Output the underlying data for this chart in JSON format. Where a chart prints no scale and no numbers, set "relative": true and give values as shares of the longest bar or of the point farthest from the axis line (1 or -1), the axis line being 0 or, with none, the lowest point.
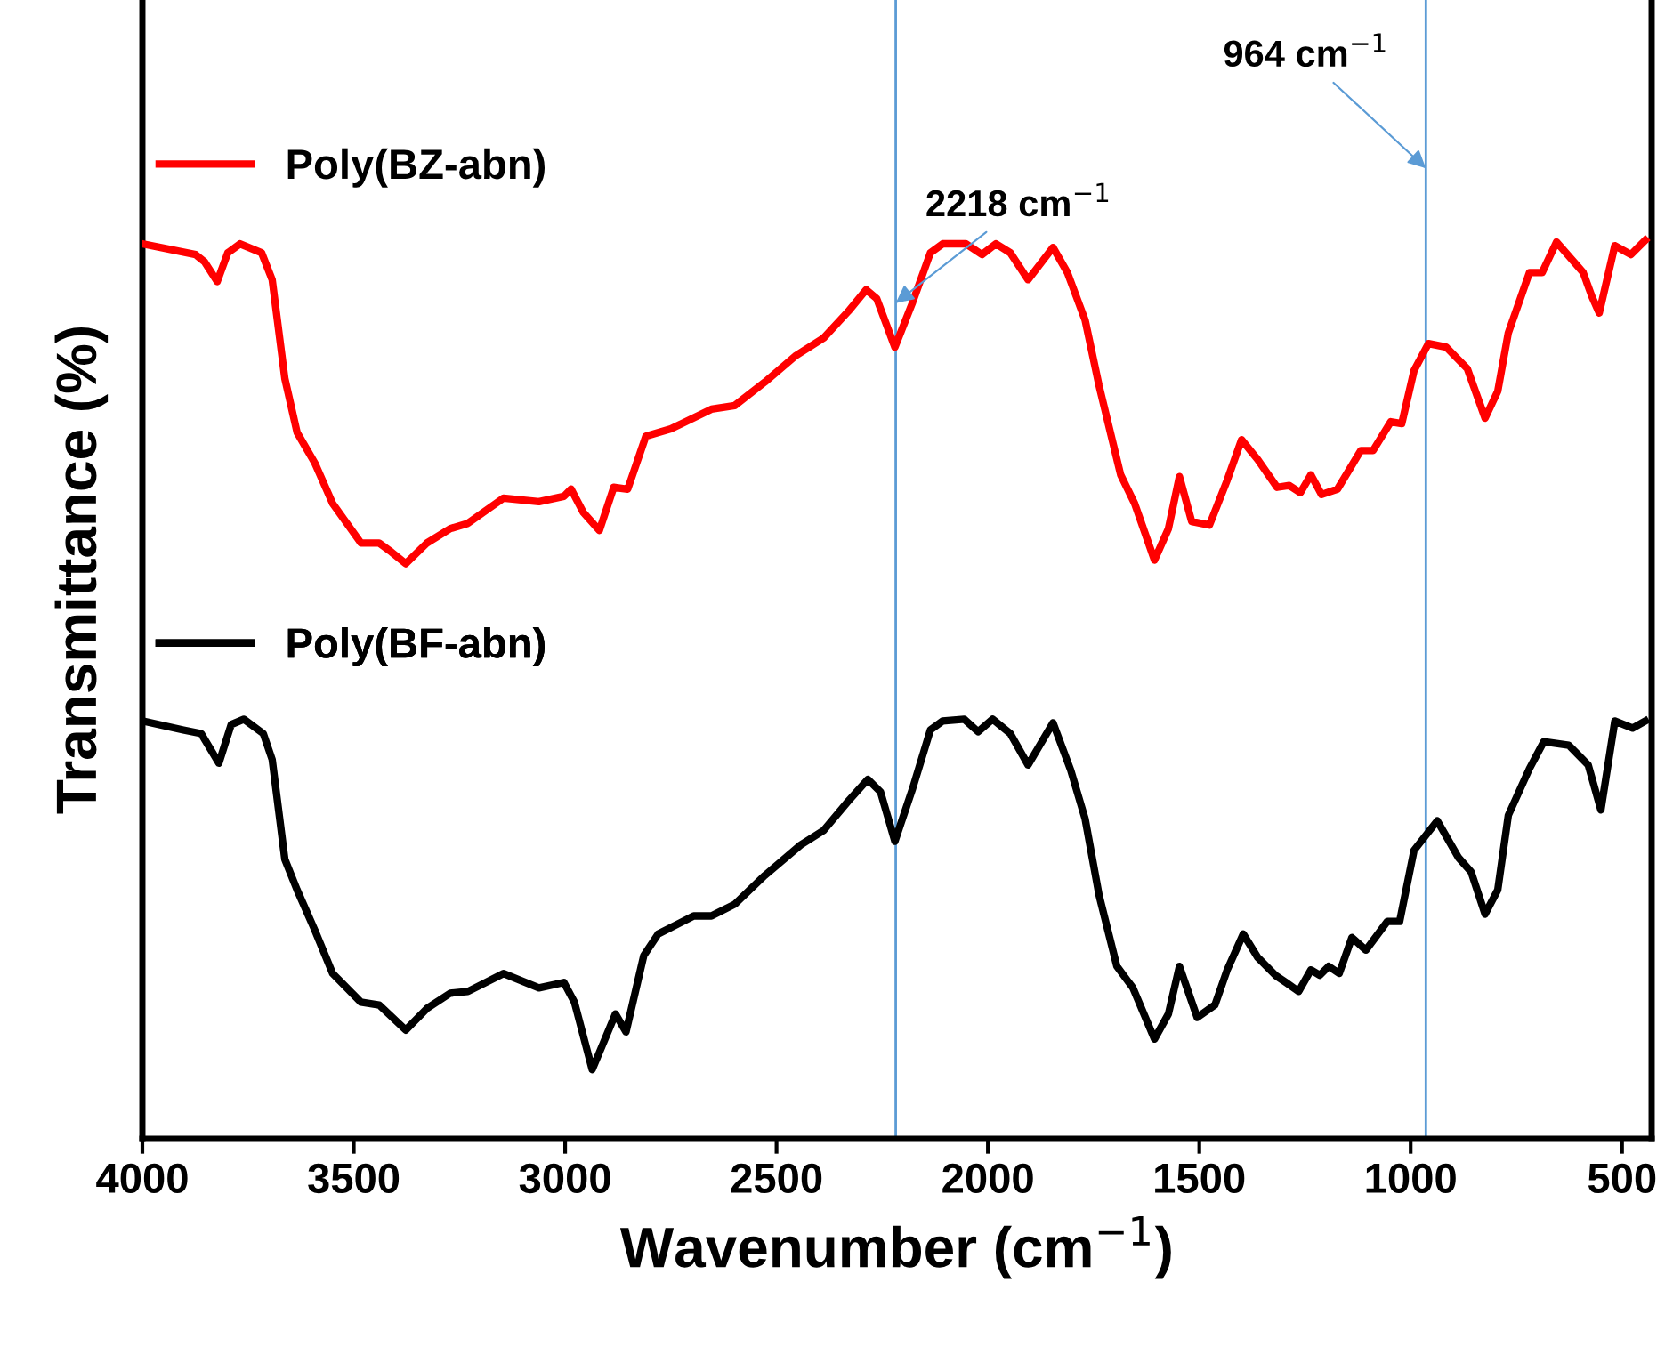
{
  "chart_data": {
    "type": "line",
    "relative": true,
    "xlabel": "Wavenumber (cm$^{−1}$)",
    "ylabel": "Transmittance (%)",
    "xlim": [
      4000,
      430
    ],
    "xticks": [
      4000,
      3500,
      3000,
      2500,
      2000,
      1500,
      1000,
      500
    ],
    "tick_labels": "x",
    "grid": false,
    "legend": "top left",
    "marker": "none",
    "line_style": "solid",
    "ref_lines": [
      {
        "axis": "x",
        "value": 2218,
        "label": "2218 cm$^{−1}$",
        "color": "#5b9bd5"
      },
      {
        "axis": "x",
        "value": 964,
        "label": "964 cm$^{−1}$",
        "color": "#5b9bd5"
      }
    ],
    "series": [
      {
        "name": "Poly(BZ-abn)",
        "color": "#ff0000",
        "x": [
          4000,
          3874,
          3853,
          3823,
          3798,
          3769,
          3718,
          3693,
          3663,
          3634,
          3592,
          3550,
          3483,
          3440,
          3411,
          3377,
          3327,
          3272,
          3230,
          3146,
          3062,
          3003,
          2986,
          2957,
          2919,
          2885,
          2852,
          2809,
          2750,
          2654,
          2599,
          2528,
          2456,
          2389,
          2330,
          2288,
          2263,
          2220,
          2178,
          2136,
          2107,
          2052,
          2014,
          1981,
          1947,
          1905,
          1846,
          1812,
          1770,
          1737,
          1686,
          1653,
          1606,
          1573,
          1547,
          1518,
          1476,
          1434,
          1400,
          1362,
          1316,
          1287,
          1261,
          1236,
          1211,
          1173,
          1118,
          1089,
          1047,
          1021,
          992,
          958,
          916,
          866,
          824,
          794,
          769,
          719,
          689,
          655,
          592,
          571,
          554,
          517,
          479,
          445
        ],
        "values": [
          0.996,
          0.984,
          0.976,
          0.954,
          0.986,
          0.996,
          0.986,
          0.956,
          0.846,
          0.786,
          0.752,
          0.707,
          0.663,
          0.663,
          0.653,
          0.64,
          0.663,
          0.679,
          0.685,
          0.713,
          0.709,
          0.715,
          0.723,
          0.697,
          0.677,
          0.725,
          0.723,
          0.782,
          0.79,
          0.812,
          0.816,
          0.842,
          0.871,
          0.891,
          0.921,
          0.945,
          0.935,
          0.881,
          0.931,
          0.986,
          0.996,
          0.996,
          0.984,
          0.996,
          0.986,
          0.956,
          0.992,
          0.964,
          0.911,
          0.838,
          0.739,
          0.707,
          0.644,
          0.679,
          0.737,
          0.687,
          0.683,
          0.733,
          0.778,
          0.756,
          0.725,
          0.727,
          0.719,
          0.739,
          0.717,
          0.723,
          0.766,
          0.766,
          0.798,
          0.796,
          0.855,
          0.885,
          0.881,
          0.857,
          0.802,
          0.832,
          0.897,
          0.964,
          0.964,
          0.998,
          0.964,
          0.937,
          0.919,
          0.994,
          0.984,
          1.0
        ]
      },
      {
        "name": "Poly(BF-abn)",
        "color": "#000000",
        "x": [
          4000,
          3903,
          3861,
          3819,
          3790,
          3760,
          3714,
          3693,
          3663,
          3634,
          3592,
          3550,
          3483,
          3440,
          3377,
          3327,
          3272,
          3230,
          3146,
          3062,
          3003,
          2978,
          2936,
          2881,
          2856,
          2814,
          2780,
          2696,
          2654,
          2599,
          2528,
          2443,
          2389,
          2330,
          2284,
          2254,
          2220,
          2178,
          2136,
          2107,
          2056,
          2023,
          1989,
          1947,
          1905,
          1846,
          1804,
          1770,
          1737,
          1695,
          1657,
          1606,
          1573,
          1547,
          1505,
          1463,
          1434,
          1396,
          1362,
          1320,
          1295,
          1265,
          1236,
          1215,
          1194,
          1169,
          1139,
          1106,
          1055,
          1026,
          992,
          937,
          887,
          857,
          824,
          794,
          769,
          719,
          685,
          626,
          580,
          550,
          517,
          475,
          445
        ],
        "values": [
          0.465,
          0.455,
          0.451,
          0.418,
          0.461,
          0.467,
          0.451,
          0.422,
          0.311,
          0.277,
          0.232,
          0.184,
          0.152,
          0.149,
          0.121,
          0.145,
          0.162,
          0.164,
          0.184,
          0.168,
          0.174,
          0.152,
          0.077,
          0.139,
          0.119,
          0.204,
          0.228,
          0.248,
          0.248,
          0.261,
          0.293,
          0.327,
          0.343,
          0.376,
          0.4,
          0.386,
          0.331,
          0.39,
          0.455,
          0.465,
          0.467,
          0.453,
          0.467,
          0.451,
          0.416,
          0.463,
          0.41,
          0.356,
          0.271,
          0.192,
          0.168,
          0.111,
          0.139,
          0.192,
          0.135,
          0.149,
          0.188,
          0.228,
          0.202,
          0.182,
          0.174,
          0.164,
          0.188,
          0.182,
          0.192,
          0.184,
          0.224,
          0.21,
          0.242,
          0.242,
          0.321,
          0.354,
          0.313,
          0.297,
          0.25,
          0.277,
          0.36,
          0.412,
          0.442,
          0.438,
          0.416,
          0.366,
          0.465,
          0.457,
          0.465
        ]
      }
    ]
  }
}
